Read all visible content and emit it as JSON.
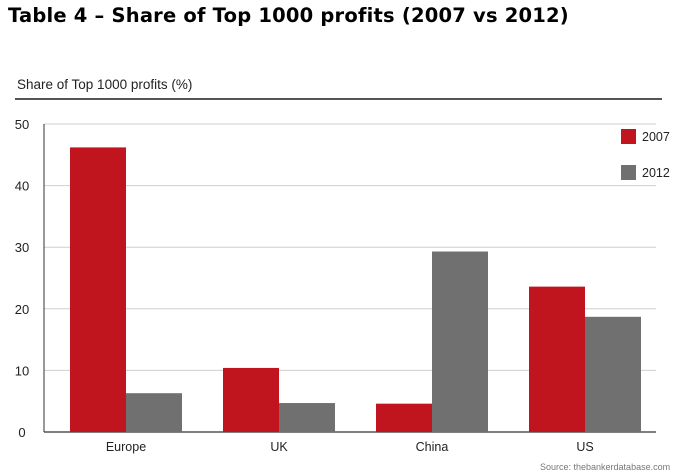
{
  "title": "Table 4 – Share of Top 1000 profits (2007 vs 2012)",
  "source": "Source: thebankerdatabase.com",
  "colors": {
    "series_2007": "#c0141f",
    "series_2012": "#707070",
    "grid": "#cfcfcf",
    "axis": "#333333"
  },
  "chart_data": {
    "type": "bar",
    "title": "",
    "ylabel": "Share of Top 1000 profits (%)",
    "xlabel": "",
    "ylim": [
      0,
      50
    ],
    "yticks": [
      0,
      10,
      20,
      30,
      40,
      50
    ],
    "grid": true,
    "legend_position": "top-right",
    "categories": [
      "Europe",
      "UK",
      "China",
      "US"
    ],
    "series": [
      {
        "name": "2007",
        "values": [
          46.2,
          10.4,
          4.6,
          23.6
        ]
      },
      {
        "name": "2012",
        "values": [
          6.3,
          4.7,
          29.3,
          18.7
        ]
      }
    ]
  }
}
